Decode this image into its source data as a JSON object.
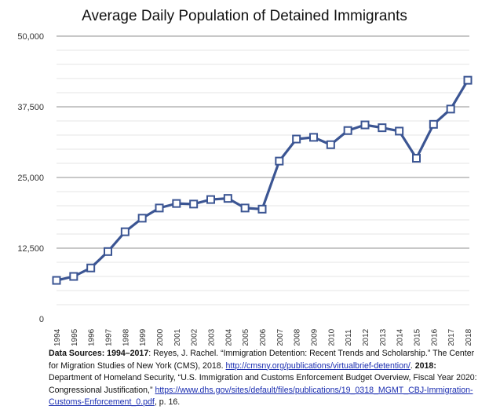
{
  "chart_data": {
    "type": "line",
    "title": "Average Daily Population of Detained Immigrants",
    "xlabel": "",
    "ylabel": "",
    "ylim": [
      0,
      50000
    ],
    "yticks": [
      "0",
      "12,500",
      "25,000",
      "37,500",
      "50,000"
    ],
    "grid": true,
    "minor_grid_step": 2500,
    "series_color": "#3b5593",
    "marker": "hollow-square",
    "x": [
      "1994",
      "1995",
      "1996",
      "1997",
      "1998",
      "1999",
      "2000",
      "2001",
      "2002",
      "2003",
      "2004",
      "2005",
      "2006",
      "2007",
      "2008",
      "2009",
      "2010",
      "2011",
      "2012",
      "2013",
      "2014",
      "2015",
      "2016",
      "2017",
      "2018"
    ],
    "values": [
      6800,
      7500,
      9000,
      11900,
      15400,
      17800,
      19600,
      20400,
      20300,
      21100,
      21300,
      19600,
      19400,
      27900,
      31800,
      32100,
      30800,
      33300,
      34300,
      33800,
      33200,
      28400,
      34400,
      37100,
      42200
    ]
  },
  "source": {
    "label1": "Data Sources: 1994–2017",
    "text1": ": Reyes, J. Rachel. “Immigration Detention: Recent Trends and Scholarship.” The Center for Migration Studies of New York (CMS), 2018. ",
    "link1": "http://cmsny.org/publications/virtualbrief-detention/",
    "text2": ". ",
    "label2": "2018:",
    "text3": " Department of Homeland Security, “U.S. Immigration and Customs Enforcement Budget Overview, Fiscal Year 2020: Congressional Justification,” ",
    "link2": "https://www.dhs.gov/sites/default/files/publications/19_0318_MGMT_CBJ-Immigration-Customs-Enforcement_0.pdf",
    "text4": ", p. 16."
  }
}
